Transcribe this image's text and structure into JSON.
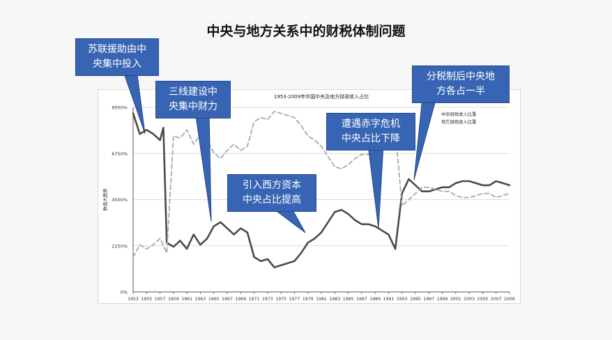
{
  "slide": {
    "title": "中央与地方关系中的财税体制问题"
  },
  "callouts": [
    {
      "lines": [
        "苏联援助由中",
        "央集中投入"
      ]
    },
    {
      "lines": [
        "三线建设中",
        "央集中财力"
      ]
    },
    {
      "lines": [
        "引入西方资本",
        "中央占比提高"
      ]
    },
    {
      "lines": [
        "遭遇赤字危机",
        "中央占比下降"
      ]
    },
    {
      "lines": [
        "分税制后中央地",
        "方各占一半"
      ]
    }
  ],
  "chart_data": {
    "type": "line",
    "title": "1953-2009年中国中央及地方财政收入占比",
    "ylabel": "数值大图表",
    "xlabel": "",
    "ylim": [
      0,
      9000
    ],
    "yticks": [
      0,
      2250,
      4500,
      6750,
      9000
    ],
    "ytick_labels": [
      "0%",
      "2250%",
      "4500%",
      "6750%",
      "9000%"
    ],
    "xlim": [
      1953,
      2009
    ],
    "xticks": [
      1953,
      1955,
      1957,
      1959,
      1961,
      1963,
      1965,
      1967,
      1969,
      1971,
      1973,
      1975,
      1977,
      1979,
      1981,
      1983,
      1985,
      1987,
      1989,
      1991,
      1993,
      1995,
      1997,
      1999,
      2001,
      2003,
      2005,
      2007,
      2009
    ],
    "grid": true,
    "legend": "top-right",
    "series": [
      {
        "name": "中央财政收入比重",
        "color": "#4a4a4a",
        "style": "solid",
        "points": [
          [
            1953,
            8700
          ],
          [
            1954,
            7700
          ],
          [
            1955,
            7900
          ],
          [
            1956,
            7700
          ],
          [
            1957,
            7400
          ],
          [
            1957.5,
            8000
          ],
          [
            1958,
            2400
          ],
          [
            1959,
            2200
          ],
          [
            1960,
            2500
          ],
          [
            1961,
            2100
          ],
          [
            1962,
            2800
          ],
          [
            1963,
            2300
          ],
          [
            1964,
            2600
          ],
          [
            1965,
            3200
          ],
          [
            1966,
            3400
          ],
          [
            1967,
            3100
          ],
          [
            1968,
            2800
          ],
          [
            1969,
            3100
          ],
          [
            1970,
            2900
          ],
          [
            1971,
            1700
          ],
          [
            1972,
            1500
          ],
          [
            1973,
            1600
          ],
          [
            1974,
            1200
          ],
          [
            1975,
            1300
          ],
          [
            1976,
            1400
          ],
          [
            1977,
            1500
          ],
          [
            1978,
            1900
          ],
          [
            1979,
            2400
          ],
          [
            1980,
            2600
          ],
          [
            1981,
            2900
          ],
          [
            1982,
            3400
          ],
          [
            1983,
            3900
          ],
          [
            1984,
            4000
          ],
          [
            1985,
            3800
          ],
          [
            1986,
            3500
          ],
          [
            1987,
            3300
          ],
          [
            1988,
            3300
          ],
          [
            1989,
            3200
          ],
          [
            1990,
            3000
          ],
          [
            1991,
            2800
          ],
          [
            1992,
            2100
          ],
          [
            1993,
            4800
          ],
          [
            1994,
            5500
          ],
          [
            1995,
            5200
          ],
          [
            1996,
            4900
          ],
          [
            1997,
            4900
          ],
          [
            1998,
            5000
          ],
          [
            1999,
            5100
          ],
          [
            2000,
            5100
          ],
          [
            2001,
            5300
          ],
          [
            2002,
            5400
          ],
          [
            2003,
            5400
          ],
          [
            2004,
            5300
          ],
          [
            2005,
            5200
          ],
          [
            2006,
            5200
          ],
          [
            2007,
            5400
          ],
          [
            2008,
            5300
          ],
          [
            2009,
            5200
          ]
        ]
      },
      {
        "name": "地方财政收入比重",
        "color": "#a8a8a8",
        "style": "dashed",
        "points": [
          [
            1953,
            1700
          ],
          [
            1954,
            2300
          ],
          [
            1955,
            2100
          ],
          [
            1956,
            2300
          ],
          [
            1957,
            2600
          ],
          [
            1958,
            1900
          ],
          [
            1959,
            7600
          ],
          [
            1960,
            7500
          ],
          [
            1961,
            7900
          ],
          [
            1962,
            7200
          ],
          [
            1963,
            7700
          ],
          [
            1964,
            7400
          ],
          [
            1965,
            6800
          ],
          [
            1966,
            6500
          ],
          [
            1967,
            6900
          ],
          [
            1968,
            7200
          ],
          [
            1969,
            6900
          ],
          [
            1970,
            7100
          ],
          [
            1971,
            8300
          ],
          [
            1972,
            8500
          ],
          [
            1973,
            8400
          ],
          [
            1974,
            8800
          ],
          [
            1975,
            8700
          ],
          [
            1976,
            8600
          ],
          [
            1977,
            8500
          ],
          [
            1978,
            8100
          ],
          [
            1979,
            7600
          ],
          [
            1980,
            7400
          ],
          [
            1981,
            7100
          ],
          [
            1982,
            6600
          ],
          [
            1983,
            6100
          ],
          [
            1984,
            6000
          ],
          [
            1985,
            6200
          ],
          [
            1986,
            6500
          ],
          [
            1987,
            6700
          ],
          [
            1988,
            6700
          ],
          [
            1989,
            6800
          ],
          [
            1990,
            7000
          ],
          [
            1991,
            7200
          ],
          [
            1992,
            7900
          ],
          [
            1993,
            4200
          ],
          [
            1994,
            4500
          ],
          [
            1995,
            4800
          ],
          [
            1996,
            5100
          ],
          [
            1997,
            5100
          ],
          [
            1998,
            5000
          ],
          [
            1999,
            4900
          ],
          [
            2000,
            4900
          ],
          [
            2001,
            4700
          ],
          [
            2002,
            4600
          ],
          [
            2003,
            4600
          ],
          [
            2004,
            4700
          ],
          [
            2005,
            4800
          ],
          [
            2006,
            4800
          ],
          [
            2007,
            4600
          ],
          [
            2008,
            4700
          ],
          [
            2009,
            4800
          ]
        ]
      }
    ]
  }
}
